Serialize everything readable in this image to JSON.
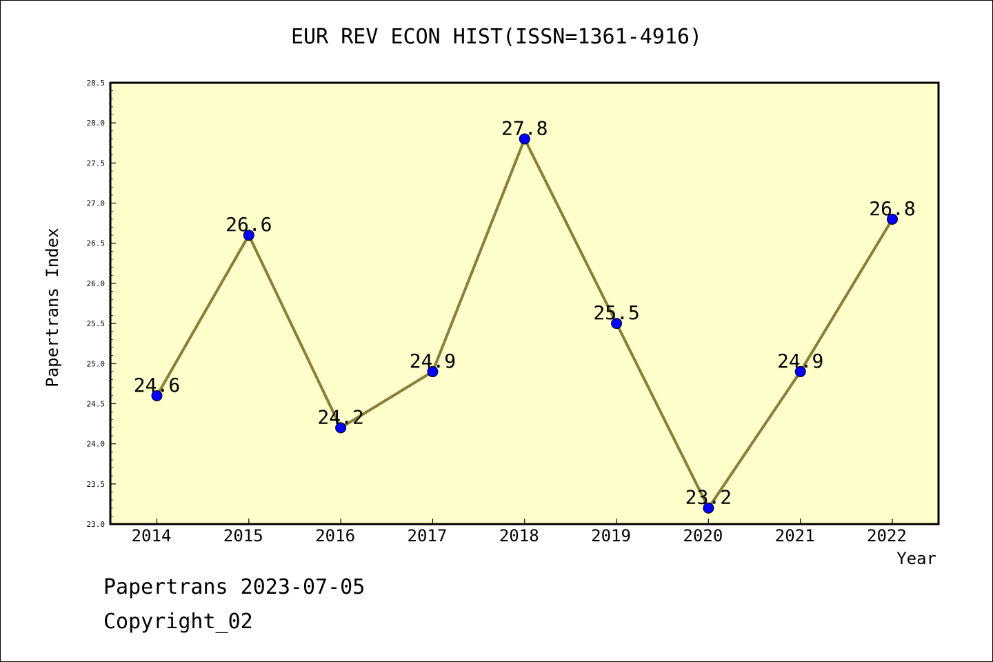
{
  "chart_data": {
    "type": "line",
    "title": "EUR REV ECON HIST(ISSN=1361-4916)",
    "xlabel": "Year",
    "ylabel": "Papertrans Index",
    "categories": [
      "2014",
      "2015",
      "2016",
      "2017",
      "2018",
      "2019",
      "2020",
      "2021",
      "2022"
    ],
    "series": [
      {
        "values": [
          24.6,
          26.6,
          24.2,
          24.9,
          27.8,
          25.5,
          23.2,
          24.9,
          26.8
        ]
      }
    ],
    "data_labels": [
      "24.6",
      "26.6",
      "24.2",
      "24.9",
      "27.8",
      "25.5",
      "23.2",
      "24.9",
      "26.8"
    ],
    "ylim": [
      23.0,
      28.5
    ],
    "yticks": [
      "23.0",
      "23.5",
      "24.0",
      "24.5",
      "25.0",
      "25.5",
      "26.0",
      "26.5",
      "27.0",
      "27.5",
      "28.0",
      "28.5"
    ],
    "grid": false,
    "legend": "none",
    "colors": {
      "plot_background": "#ffffcc",
      "line": "#8b7d3a",
      "marker": "#0000ff"
    }
  },
  "footer": {
    "line1": "Papertrans 2023-07-05",
    "line2": "Copyright_02"
  }
}
